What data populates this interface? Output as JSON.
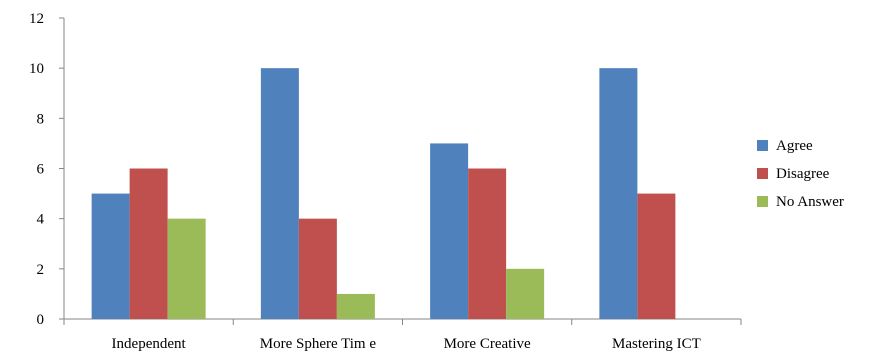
{
  "chart_data": {
    "type": "bar",
    "title": "",
    "xlabel": "",
    "ylabel": "",
    "categories": [
      "Independent",
      "More Sphere Tim e",
      "More Creative",
      "Mastering ICT"
    ],
    "series": [
      {
        "name": "Agree",
        "color": "#4F81BD",
        "values": [
          5,
          10,
          7,
          10
        ]
      },
      {
        "name": "Disagree",
        "color": "#C0504D",
        "values": [
          6,
          4,
          6,
          5
        ]
      },
      {
        "name": "No Answer",
        "color": "#9BBB59",
        "values": [
          4,
          1,
          2,
          0
        ]
      }
    ],
    "ylim": [
      0,
      12
    ],
    "yticks": [
      "0",
      "2",
      "4",
      "6",
      "8",
      "10",
      "12"
    ],
    "grid": false,
    "legend_position": "right"
  }
}
